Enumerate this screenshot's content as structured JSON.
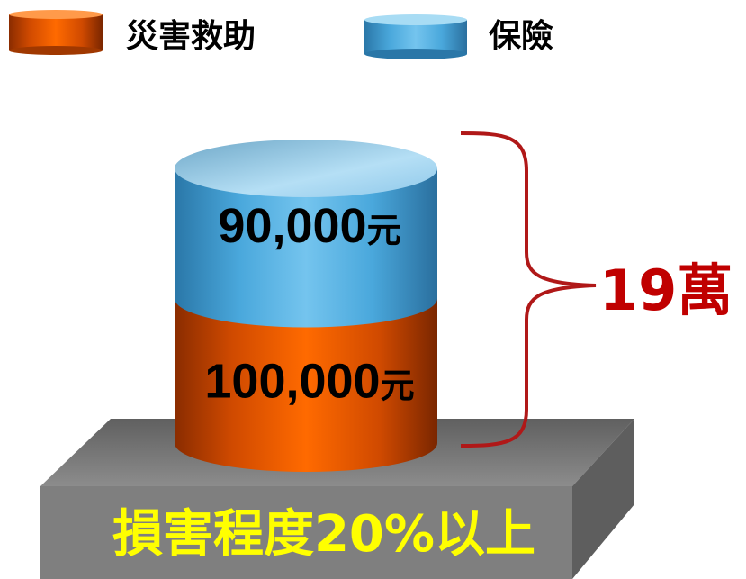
{
  "chart_data": {
    "type": "bar",
    "stacked": true,
    "legend_position": "top-left",
    "series": [
      {
        "name": "災害救助",
        "value": 100000,
        "label": "100,000",
        "unit": "元",
        "color": "#ff6600"
      },
      {
        "name": "保險",
        "value": 90000,
        "label": "90,000",
        "unit": "元",
        "color": "#3fa9dc"
      }
    ],
    "total_label": "19萬",
    "base_label": "損害程度20%以上"
  },
  "colors": {
    "disaster": "#ff6600",
    "insurance": "#3fa9dc",
    "total": "#c00000",
    "base_text": "#ffff00",
    "base_block": "#808080"
  }
}
